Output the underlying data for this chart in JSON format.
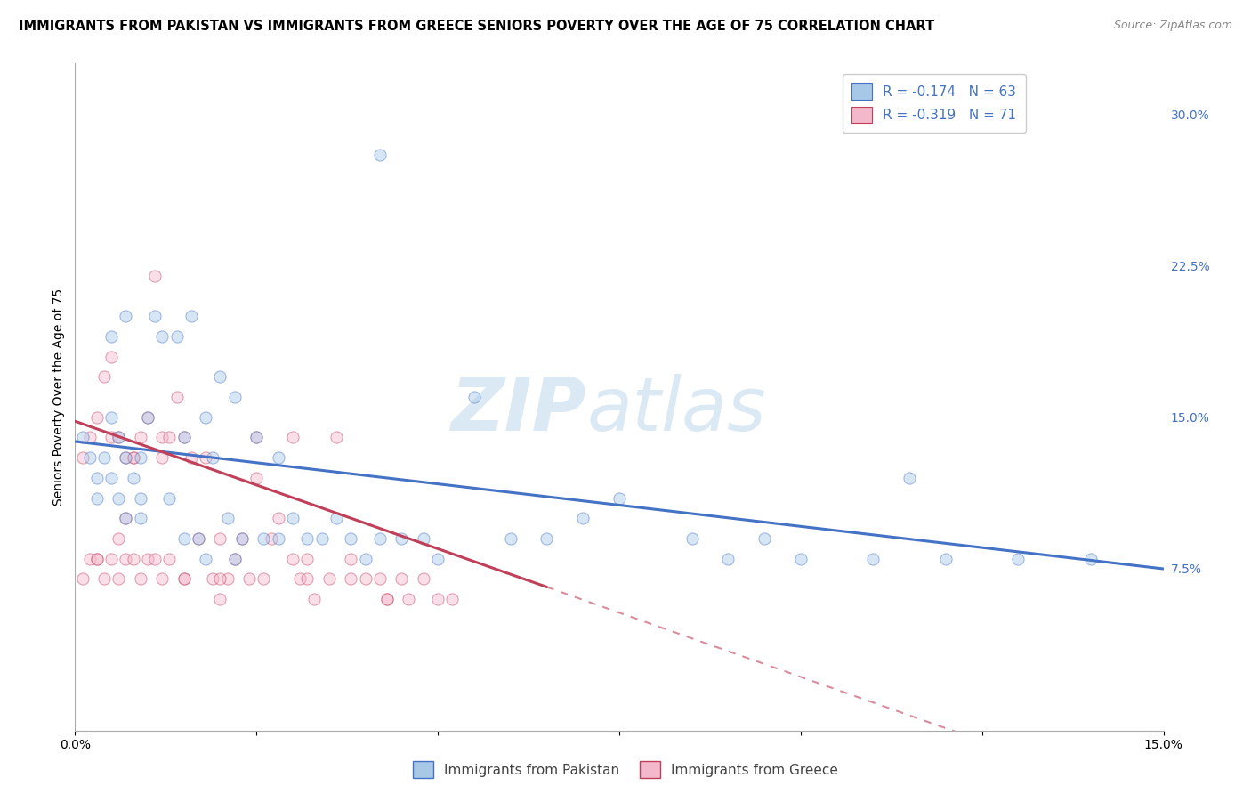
{
  "title": "IMMIGRANTS FROM PAKISTAN VS IMMIGRANTS FROM GREECE SENIORS POVERTY OVER THE AGE OF 75 CORRELATION CHART",
  "source": "Source: ZipAtlas.com",
  "ylabel": "Seniors Poverty Over the Age of 75",
  "xlim": [
    0,
    0.15
  ],
  "ylim": [
    -0.005,
    0.325
  ],
  "right_yticks": [
    0.075,
    0.15,
    0.225,
    0.3
  ],
  "right_yticklabels": [
    "7.5%",
    "15.0%",
    "22.5%",
    "30.0%"
  ],
  "xticks": [
    0.0,
    0.025,
    0.05,
    0.075,
    0.1,
    0.125,
    0.15
  ],
  "xticklabels": [
    "0.0%",
    "",
    "",
    "",
    "",
    "",
    "15.0%"
  ],
  "legend_r1": "R = -0.174",
  "legend_n1": "N = 63",
  "legend_r2": "R = -0.319",
  "legend_n2": "N = 71",
  "color_pakistan": "#a8c8e8",
  "color_greece": "#f4b8cc",
  "line_color_pakistan": "#4472c4",
  "line_color_greece": "#c0405a",
  "pakistan_x": [
    0.001,
    0.002,
    0.003,
    0.003,
    0.004,
    0.005,
    0.005,
    0.006,
    0.006,
    0.007,
    0.007,
    0.008,
    0.009,
    0.009,
    0.01,
    0.011,
    0.012,
    0.013,
    0.014,
    0.015,
    0.016,
    0.017,
    0.018,
    0.019,
    0.02,
    0.021,
    0.022,
    0.023,
    0.025,
    0.026,
    0.028,
    0.03,
    0.032,
    0.034,
    0.036,
    0.038,
    0.04,
    0.042,
    0.045,
    0.048,
    0.05,
    0.055,
    0.06,
    0.065,
    0.07,
    0.075,
    0.085,
    0.09,
    0.095,
    0.1,
    0.11,
    0.12,
    0.115,
    0.13,
    0.14,
    0.042,
    0.028,
    0.015,
    0.009,
    0.007,
    0.005,
    0.018,
    0.022
  ],
  "pakistan_y": [
    0.14,
    0.13,
    0.12,
    0.11,
    0.13,
    0.12,
    0.15,
    0.11,
    0.14,
    0.13,
    0.1,
    0.12,
    0.1,
    0.13,
    0.15,
    0.2,
    0.19,
    0.11,
    0.19,
    0.14,
    0.2,
    0.09,
    0.15,
    0.13,
    0.17,
    0.1,
    0.16,
    0.09,
    0.14,
    0.09,
    0.09,
    0.1,
    0.09,
    0.09,
    0.1,
    0.09,
    0.08,
    0.09,
    0.09,
    0.09,
    0.08,
    0.16,
    0.09,
    0.09,
    0.1,
    0.11,
    0.09,
    0.08,
    0.09,
    0.08,
    0.08,
    0.08,
    0.12,
    0.08,
    0.08,
    0.28,
    0.13,
    0.09,
    0.11,
    0.2,
    0.19,
    0.08,
    0.08
  ],
  "greece_x": [
    0.001,
    0.001,
    0.002,
    0.002,
    0.003,
    0.003,
    0.004,
    0.004,
    0.005,
    0.005,
    0.005,
    0.006,
    0.006,
    0.006,
    0.007,
    0.007,
    0.008,
    0.008,
    0.009,
    0.009,
    0.01,
    0.01,
    0.011,
    0.011,
    0.012,
    0.012,
    0.013,
    0.013,
    0.014,
    0.015,
    0.015,
    0.016,
    0.017,
    0.018,
    0.019,
    0.02,
    0.021,
    0.022,
    0.023,
    0.024,
    0.025,
    0.026,
    0.027,
    0.028,
    0.03,
    0.031,
    0.032,
    0.033,
    0.035,
    0.036,
    0.038,
    0.04,
    0.042,
    0.043,
    0.045,
    0.048,
    0.05,
    0.052,
    0.03,
    0.02,
    0.015,
    0.007,
    0.003,
    0.008,
    0.012,
    0.02,
    0.025,
    0.032,
    0.038,
    0.043,
    0.046
  ],
  "greece_y": [
    0.13,
    0.07,
    0.14,
    0.08,
    0.15,
    0.08,
    0.17,
    0.07,
    0.18,
    0.08,
    0.14,
    0.14,
    0.09,
    0.07,
    0.13,
    0.08,
    0.13,
    0.08,
    0.14,
    0.07,
    0.15,
    0.08,
    0.22,
    0.08,
    0.14,
    0.07,
    0.14,
    0.08,
    0.16,
    0.14,
    0.07,
    0.13,
    0.09,
    0.13,
    0.07,
    0.09,
    0.07,
    0.08,
    0.09,
    0.07,
    0.12,
    0.07,
    0.09,
    0.1,
    0.08,
    0.07,
    0.08,
    0.06,
    0.07,
    0.14,
    0.08,
    0.07,
    0.07,
    0.06,
    0.07,
    0.07,
    0.06,
    0.06,
    0.14,
    0.07,
    0.07,
    0.1,
    0.08,
    0.13,
    0.13,
    0.06,
    0.14,
    0.07,
    0.07,
    0.06,
    0.06
  ],
  "watermark_zip": "ZIP",
  "watermark_atlas": "atlas",
  "background_color": "#ffffff",
  "grid_color": "#cccccc",
  "scatter_size": 90,
  "scatter_alpha": 0.45,
  "title_fontsize": 10.5,
  "axis_label_fontsize": 10,
  "tick_fontsize": 10,
  "pak_line_xstart": 0.0,
  "pak_line_xend": 0.15,
  "pak_line_ystart": 0.138,
  "pak_line_yend": 0.075,
  "gre_line_xstart": 0.0,
  "gre_line_xend": 0.065,
  "gre_line_ystart": 0.148,
  "gre_line_yend": 0.066,
  "gre_dash_xstart": 0.065,
  "gre_dash_xend": 0.15,
  "gre_dash_ystart": 0.066,
  "gre_dash_yend": -0.042
}
